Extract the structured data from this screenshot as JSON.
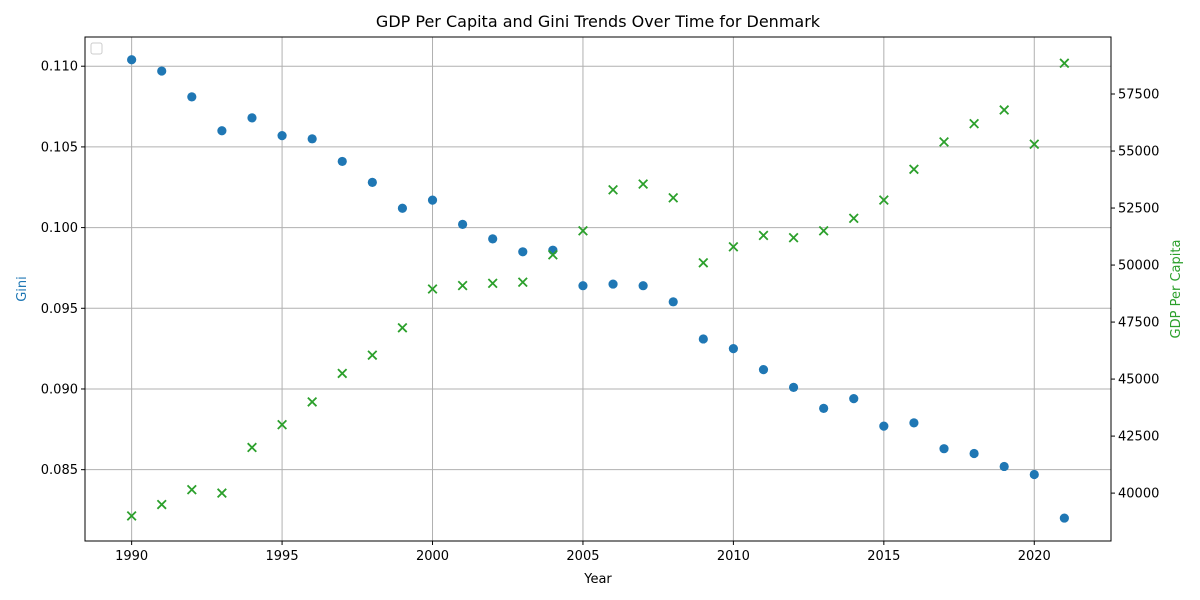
{
  "chart_data": {
    "type": "scatter",
    "title": "GDP Per Capita and Gini Trends Over Time for Denmark",
    "xlabel": "Year",
    "ylabel_left": "Gini",
    "ylabel_right": "GDP Per Capita",
    "xlim": [
      1988.45,
      2022.55
    ],
    "ylim_left": [
      0.08058,
      0.11181
    ],
    "ylim_right": [
      37900,
      60000
    ],
    "x_ticks": [
      1990,
      1995,
      2000,
      2005,
      2010,
      2015,
      2020
    ],
    "y_left_ticks": [
      0.085,
      0.09,
      0.095,
      0.1,
      0.105,
      0.11
    ],
    "y_left_tick_labels": [
      "0.085",
      "0.090",
      "0.095",
      "0.100",
      "0.105",
      "0.110"
    ],
    "y_right_ticks": [
      40000,
      42500,
      45000,
      47500,
      50000,
      52500,
      55000,
      57500
    ],
    "grid": true,
    "legend": "upper-left (empty)",
    "colors": {
      "gini": "#1f77b4",
      "gdp": "#2ca02c"
    },
    "x": [
      1990,
      1991,
      1992,
      1993,
      1994,
      1995,
      1996,
      1997,
      1998,
      1999,
      2000,
      2001,
      2002,
      2003,
      2004,
      2005,
      2006,
      2007,
      2008,
      2009,
      2010,
      2011,
      2012,
      2013,
      2014,
      2015,
      2016,
      2017,
      2018,
      2019,
      2020,
      2021
    ],
    "series": [
      {
        "name": "Gini",
        "axis": "left",
        "marker": "circle",
        "values": [
          0.1104,
          0.1097,
          0.1081,
          0.106,
          0.1068,
          0.1057,
          0.1055,
          0.1041,
          0.1028,
          0.1012,
          0.1017,
          0.1002,
          0.0993,
          0.0985,
          0.0986,
          0.0964,
          0.0965,
          0.0964,
          0.0954,
          0.0931,
          0.0925,
          0.0912,
          0.0901,
          0.0888,
          0.0894,
          0.0877,
          0.0879,
          0.0863,
          0.086,
          0.0852,
          0.0847,
          0.082
        ]
      },
      {
        "name": "GDP Per Capita",
        "axis": "right",
        "marker": "x",
        "values": [
          39000,
          39500,
          40150,
          40000,
          42000,
          43000,
          44000,
          45250,
          46050,
          47250,
          48950,
          49100,
          49200,
          49250,
          50450,
          51500,
          53300,
          53550,
          52950,
          50100,
          50800,
          51300,
          51200,
          51500,
          52050,
          52850,
          54200,
          55400,
          56200,
          56800,
          55300,
          58850
        ]
      }
    ]
  }
}
